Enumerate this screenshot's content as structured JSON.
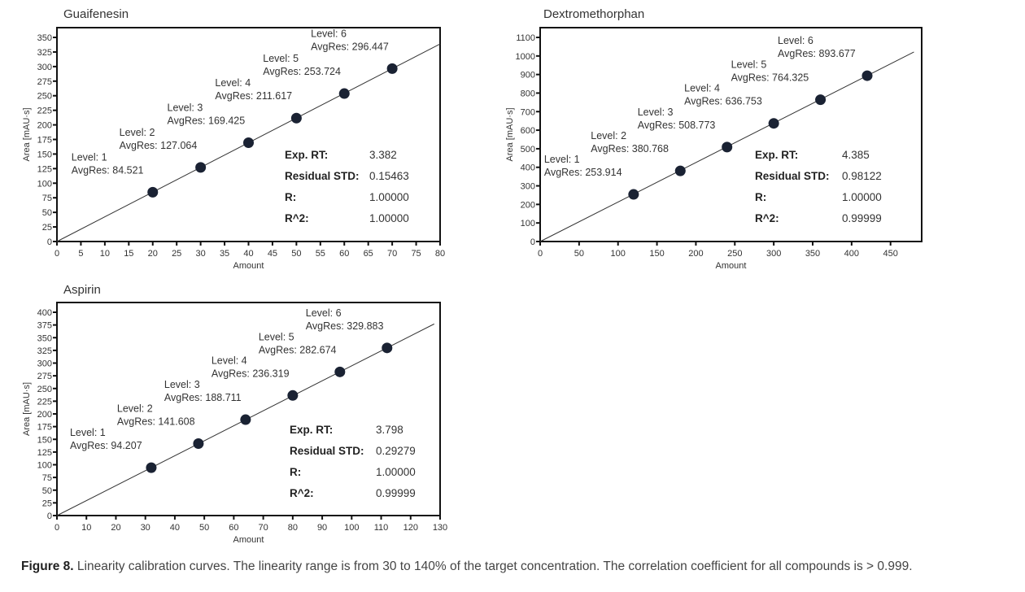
{
  "chart_data": [
    {
      "type": "scatter",
      "title": "Guaifenesin",
      "xlabel": "Amount",
      "ylabel": "Area [mAU·s]",
      "xlim": [
        0,
        80
      ],
      "ylim": [
        0,
        350
      ],
      "xticks": [
        0,
        5,
        10,
        15,
        20,
        25,
        30,
        35,
        40,
        45,
        50,
        55,
        60,
        65,
        70,
        75,
        80
      ],
      "yticks": [
        0,
        25,
        50,
        75,
        100,
        125,
        150,
        175,
        200,
        225,
        250,
        275,
        300,
        325,
        350
      ],
      "fit_line": {
        "x_start": 0,
        "x_end": 80
      },
      "points": [
        {
          "level": 1,
          "x": 20,
          "y": 84.521,
          "label_level": "Level: 1",
          "label_avg": "AvgRes: 84.521"
        },
        {
          "level": 2,
          "x": 30,
          "y": 127.064,
          "label_level": "Level: 2",
          "label_avg": "AvgRes: 127.064"
        },
        {
          "level": 3,
          "x": 40,
          "y": 169.425,
          "label_level": "Level: 3",
          "label_avg": "AvgRes: 169.425"
        },
        {
          "level": 4,
          "x": 50,
          "y": 211.617,
          "label_level": "Level: 4",
          "label_avg": "AvgRes: 211.617"
        },
        {
          "level": 5,
          "x": 60,
          "y": 253.724,
          "label_level": "Level: 5",
          "label_avg": "AvgRes: 253.724"
        },
        {
          "level": 6,
          "x": 70,
          "y": 296.447,
          "label_level": "Level: 6",
          "label_avg": "AvgRes: 296.447"
        }
      ],
      "stats": [
        {
          "key": "Exp. RT:",
          "value": "3.382"
        },
        {
          "key": "Residual STD:",
          "value": "0.15463"
        },
        {
          "key": "R:",
          "value": "1.00000"
        },
        {
          "key": "R^2:",
          "value": "1.00000"
        }
      ]
    },
    {
      "type": "scatter",
      "title": "Dextromethorphan",
      "xlabel": "Amount",
      "ylabel": "Area [mAU·s]",
      "xlim": [
        0,
        490
      ],
      "ylim": [
        0,
        1100
      ],
      "xticks": [
        0,
        50,
        100,
        150,
        200,
        250,
        300,
        350,
        400,
        450
      ],
      "yticks": [
        0,
        100,
        200,
        300,
        400,
        500,
        600,
        700,
        800,
        900,
        1000,
        1100
      ],
      "fit_line": {
        "x_start": 0,
        "x_end": 480
      },
      "points": [
        {
          "level": 1,
          "x": 120,
          "y": 253.914,
          "label_level": "Level: 1",
          "label_avg": "AvgRes: 253.914"
        },
        {
          "level": 2,
          "x": 180,
          "y": 380.768,
          "label_level": "Level: 2",
          "label_avg": "AvgRes: 380.768"
        },
        {
          "level": 3,
          "x": 240,
          "y": 508.773,
          "label_level": "Level: 3",
          "label_avg": "AvgRes: 508.773"
        },
        {
          "level": 4,
          "x": 300,
          "y": 636.753,
          "label_level": "Level: 4",
          "label_avg": "AvgRes: 636.753"
        },
        {
          "level": 5,
          "x": 360,
          "y": 764.325,
          "label_level": "Level: 5",
          "label_avg": "AvgRes: 764.325"
        },
        {
          "level": 6,
          "x": 420,
          "y": 893.677,
          "label_level": "Level: 6",
          "label_avg": "AvgRes: 893.677"
        }
      ],
      "stats": [
        {
          "key": "Exp. RT:",
          "value": "4.385"
        },
        {
          "key": "Residual STD:",
          "value": "0.98122"
        },
        {
          "key": "R:",
          "value": "1.00000"
        },
        {
          "key": "R^2:",
          "value": "0.99999"
        }
      ]
    },
    {
      "type": "scatter",
      "title": "Aspirin",
      "xlabel": "Amount",
      "ylabel": "Area [mAU·s]",
      "xlim": [
        0,
        130
      ],
      "ylim": [
        0,
        400
      ],
      "xticks": [
        0,
        10,
        20,
        30,
        40,
        50,
        60,
        70,
        80,
        90,
        100,
        110,
        120,
        130
      ],
      "yticks": [
        0,
        25,
        50,
        75,
        100,
        125,
        150,
        175,
        200,
        225,
        250,
        275,
        300,
        325,
        350,
        375,
        400
      ],
      "fit_line": {
        "x_start": 0,
        "x_end": 128
      },
      "points": [
        {
          "level": 1,
          "x": 32,
          "y": 94.207,
          "label_level": "Level: 1",
          "label_avg": "AvgRes: 94.207"
        },
        {
          "level": 2,
          "x": 48,
          "y": 141.608,
          "label_level": "Level: 2",
          "label_avg": "AvgRes: 141.608"
        },
        {
          "level": 3,
          "x": 64,
          "y": 188.711,
          "label_level": "Level: 3",
          "label_avg": "AvgRes: 188.711"
        },
        {
          "level": 4,
          "x": 80,
          "y": 236.319,
          "label_level": "Level: 4",
          "label_avg": "AvgRes: 236.319"
        },
        {
          "level": 5,
          "x": 96,
          "y": 282.674,
          "label_level": "Level: 5",
          "label_avg": "AvgRes: 282.674"
        },
        {
          "level": 6,
          "x": 112,
          "y": 329.883,
          "label_level": "Level: 6",
          "label_avg": "AvgRes: 329.883"
        }
      ],
      "stats": [
        {
          "key": "Exp. RT:",
          "value": "3.798"
        },
        {
          "key": "Residual STD:",
          "value": "0.29279"
        },
        {
          "key": "R:",
          "value": "1.00000"
        },
        {
          "key": "R^2:",
          "value": "0.99999"
        }
      ]
    }
  ],
  "colors": {
    "marker": "#1a2233",
    "axis": "#111111",
    "line": "#333333"
  },
  "caption": {
    "label": "Figure 8.",
    "text": " Linearity calibration curves. The linearity range is from 30 to 140% of the target concentration. The correlation coefficient for all compounds is > 0.999."
  }
}
